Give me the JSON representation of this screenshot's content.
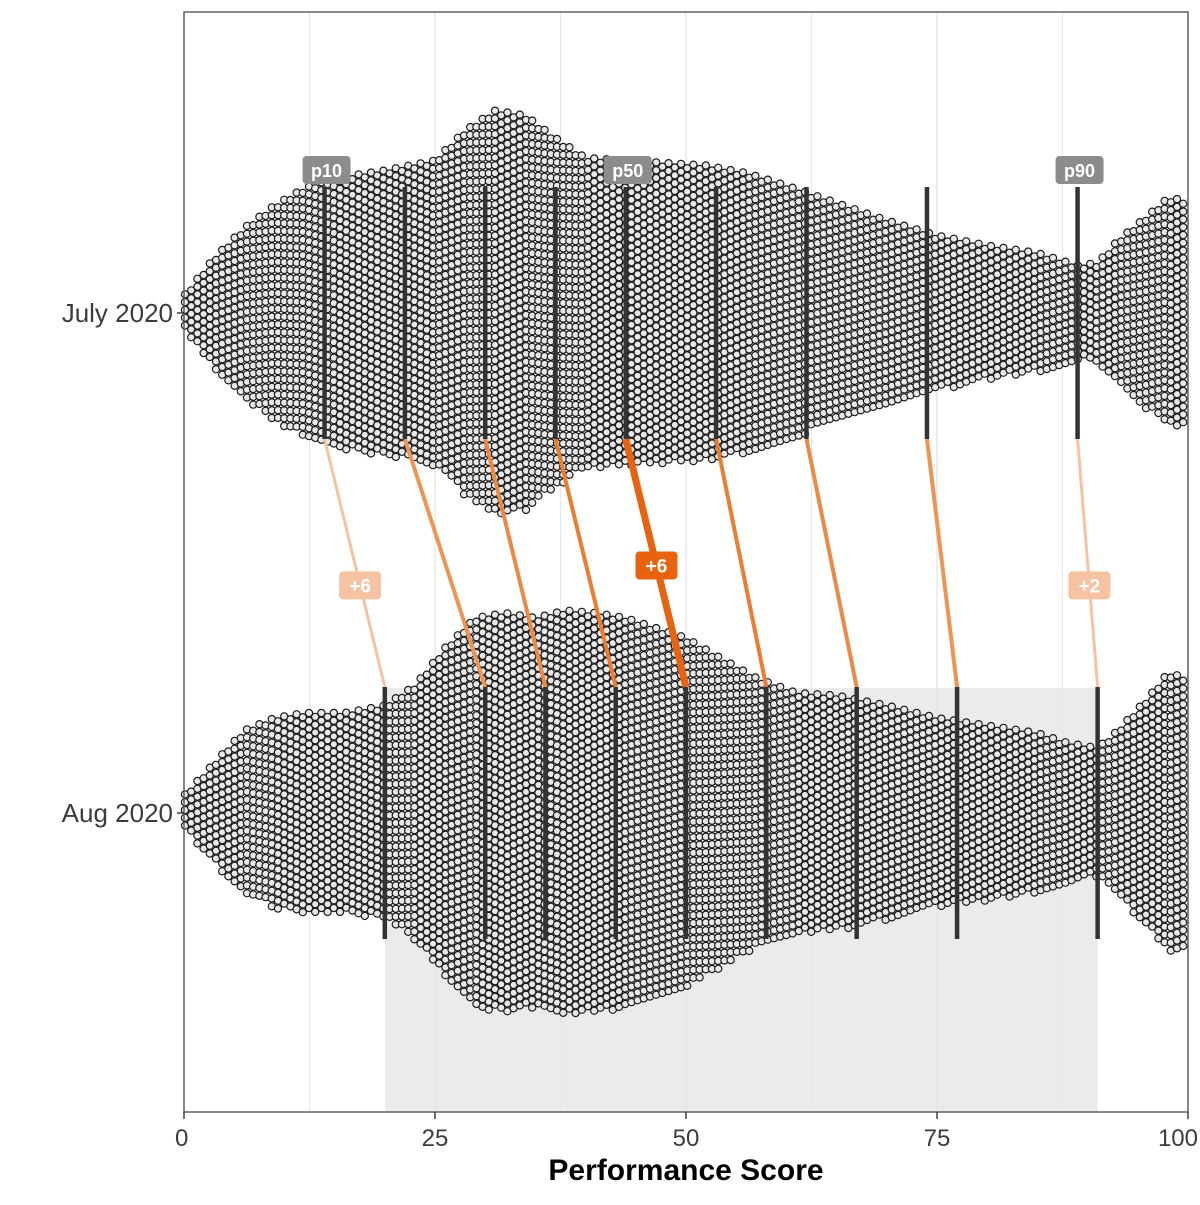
{
  "chart_data": {
    "type": "beeswarm",
    "xlabel": "Performance Score",
    "xlim": [
      0,
      100
    ],
    "x_ticks": [
      0,
      25,
      50,
      75,
      100
    ],
    "x_tick_labels": [
      "0",
      "25",
      "50",
      "75",
      "100"
    ],
    "grid": true,
    "highlight_range": [
      20,
      91
    ],
    "highlight_color": "#ebebeb",
    "groups": [
      {
        "label": "July 2020",
        "density_profile": [
          [
            0,
            0.07
          ],
          [
            3,
            0.22
          ],
          [
            6,
            0.34
          ],
          [
            9,
            0.43
          ],
          [
            12,
            0.5
          ],
          [
            15,
            0.54
          ],
          [
            20,
            0.57
          ],
          [
            25,
            0.61
          ],
          [
            28,
            0.73
          ],
          [
            31,
            0.81
          ],
          [
            34,
            0.79
          ],
          [
            37,
            0.7
          ],
          [
            40,
            0.62
          ],
          [
            44,
            0.61
          ],
          [
            48,
            0.6
          ],
          [
            52,
            0.59
          ],
          [
            56,
            0.56
          ],
          [
            60,
            0.51
          ],
          [
            65,
            0.44
          ],
          [
            70,
            0.37
          ],
          [
            75,
            0.31
          ],
          [
            80,
            0.27
          ],
          [
            85,
            0.24
          ],
          [
            89,
            0.19
          ],
          [
            91,
            0.2
          ],
          [
            93,
            0.29
          ],
          [
            96,
            0.39
          ],
          [
            98,
            0.46
          ],
          [
            100,
            0.45
          ]
        ],
        "percentile_lines": [
          14,
          22,
          30,
          37,
          44,
          53,
          62,
          74,
          89
        ],
        "percentile_labels": [
          {
            "text": "p10",
            "x": 14
          },
          {
            "text": "p50",
            "x": 44
          },
          {
            "text": "p90",
            "x": 89
          }
        ]
      },
      {
        "label": "Aug 2020",
        "density_profile": [
          [
            0,
            0.07
          ],
          [
            3,
            0.2
          ],
          [
            6,
            0.33
          ],
          [
            9,
            0.38
          ],
          [
            12,
            0.4
          ],
          [
            16,
            0.4
          ],
          [
            20,
            0.43
          ],
          [
            23,
            0.51
          ],
          [
            26,
            0.66
          ],
          [
            29,
            0.78
          ],
          [
            32,
            0.8
          ],
          [
            35,
            0.78
          ],
          [
            38,
            0.81
          ],
          [
            41,
            0.8
          ],
          [
            44,
            0.78
          ],
          [
            47,
            0.74
          ],
          [
            50,
            0.7
          ],
          [
            53,
            0.63
          ],
          [
            57,
            0.54
          ],
          [
            61,
            0.48
          ],
          [
            65,
            0.47
          ],
          [
            70,
            0.43
          ],
          [
            75,
            0.38
          ],
          [
            80,
            0.35
          ],
          [
            85,
            0.32
          ],
          [
            88,
            0.28
          ],
          [
            91,
            0.26
          ],
          [
            93,
            0.33
          ],
          [
            96,
            0.46
          ],
          [
            98,
            0.56
          ],
          [
            100,
            0.54
          ]
        ],
        "percentile_lines": [
          20,
          30,
          36,
          43,
          50,
          58,
          67,
          77,
          91
        ]
      }
    ],
    "connectors": [
      {
        "from": 14,
        "to": 20,
        "color": "#f5c3a2",
        "width": 3,
        "label": "+6"
      },
      {
        "from": 22,
        "to": 30,
        "color": "#ee9554",
        "width": 4
      },
      {
        "from": 30,
        "to": 36,
        "color": "#ec8a45",
        "width": 4
      },
      {
        "from": 37,
        "to": 43,
        "color": "#ea7d33",
        "width": 4
      },
      {
        "from": 44,
        "to": 50,
        "color": "#e8620f",
        "width": 7,
        "label": "+6"
      },
      {
        "from": 53,
        "to": 58,
        "color": "#ea7d33",
        "width": 4
      },
      {
        "from": 62,
        "to": 67,
        "color": "#ec8a45",
        "width": 4
      },
      {
        "from": 74,
        "to": 77,
        "color": "#ee9554",
        "width": 4
      },
      {
        "from": 89,
        "to": 91,
        "color": "#f5c3a2",
        "width": 3,
        "label": "+2"
      }
    ],
    "colors": {
      "point_fill": "#e8e8e8",
      "point_stroke": "#1a1a1a",
      "percentile_line": "#333333",
      "percentile_label_bg": "#8c8c8c",
      "grid": "#e6e6e6",
      "panel_border": "#555555"
    }
  }
}
